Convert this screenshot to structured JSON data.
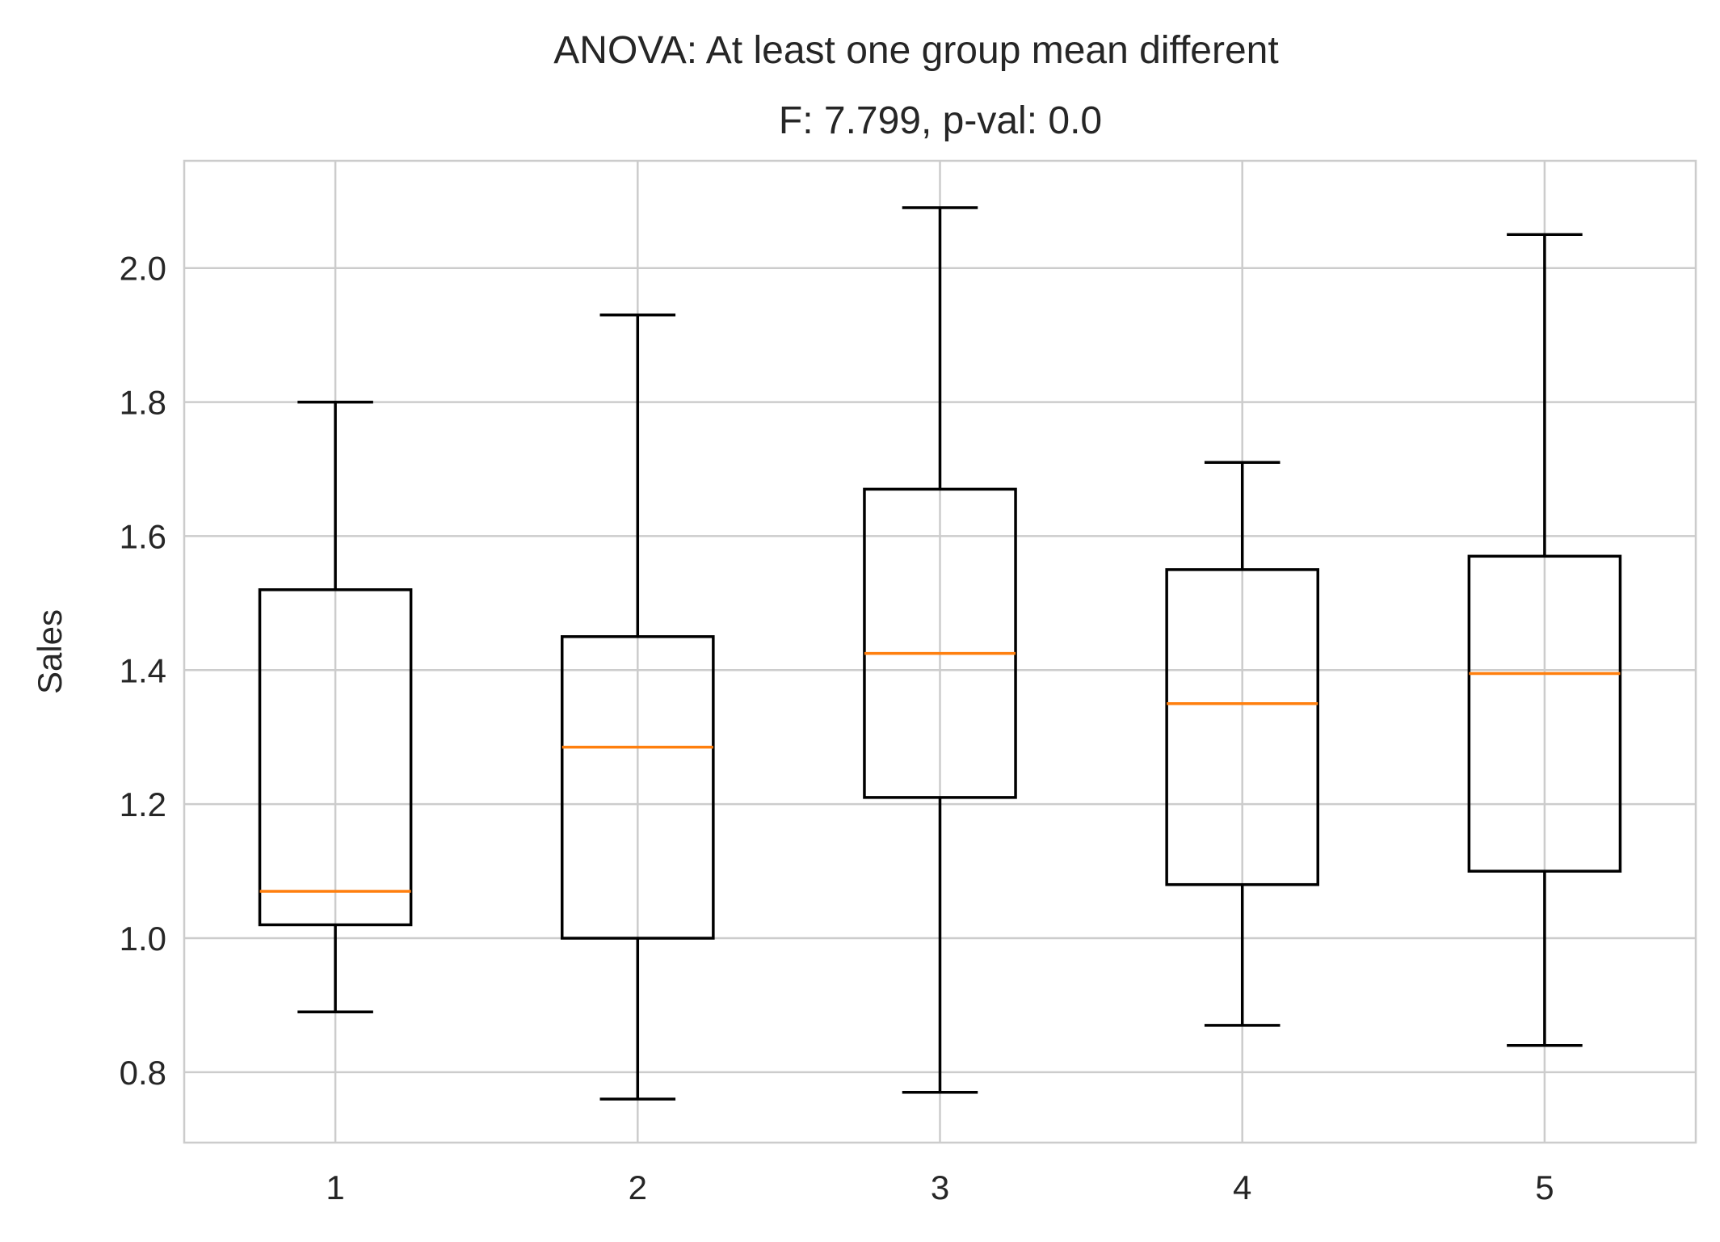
{
  "chart_data": {
    "type": "box",
    "title": "ANOVA: At least one group mean different",
    "subtitle": "F: 7.799, p-val: 0.0",
    "xlabel": "",
    "ylabel": "Sales",
    "categories": [
      "1",
      "2",
      "3",
      "4",
      "5"
    ],
    "boxes": [
      {
        "whisker_low": 0.89,
        "q1": 1.02,
        "median": 1.07,
        "q3": 1.52,
        "whisker_high": 1.8
      },
      {
        "whisker_low": 0.76,
        "q1": 1.0,
        "median": 1.285,
        "q3": 1.45,
        "whisker_high": 1.93
      },
      {
        "whisker_low": 0.77,
        "q1": 1.21,
        "median": 1.425,
        "q3": 1.67,
        "whisker_high": 2.09
      },
      {
        "whisker_low": 0.87,
        "q1": 1.08,
        "median": 1.35,
        "q3": 1.55,
        "whisker_high": 1.71
      },
      {
        "whisker_low": 0.84,
        "q1": 1.1,
        "median": 1.395,
        "q3": 1.57,
        "whisker_high": 2.05
      }
    ],
    "yticks": [
      "0.8",
      "1.0",
      "1.2",
      "1.4",
      "1.6",
      "1.8",
      "2.0"
    ],
    "ylim": [
      0.695,
      2.16
    ],
    "xlim": [
      0.5,
      5.5
    ],
    "grid": true,
    "colors": {
      "box": "#000000",
      "median": "#ff7f0e",
      "grid": "#cccccc",
      "spine": "#cccccc",
      "text": "#262626"
    }
  }
}
